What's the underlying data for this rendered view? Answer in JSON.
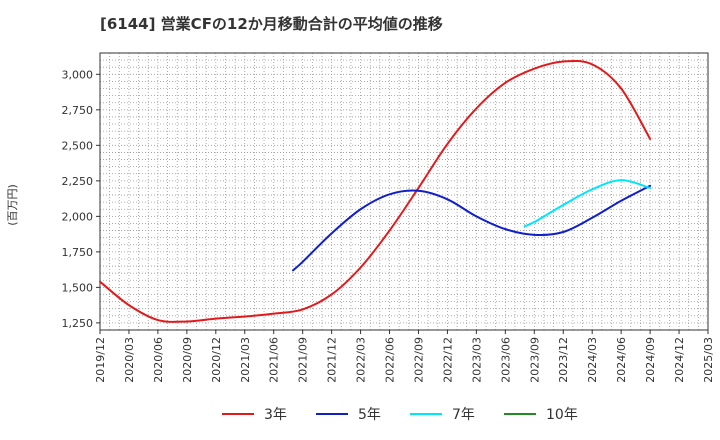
{
  "chart_data": {
    "type": "line",
    "title": "[6144]  営業CFの12か月移動合計の平均値の推移",
    "ylabel": "(百万円)",
    "xlabel": "",
    "ylim": [
      1200,
      3150
    ],
    "yticks": [
      1250,
      1500,
      1750,
      2000,
      2250,
      2500,
      2750,
      3000
    ],
    "ytick_labels": [
      "1,250",
      "1,500",
      "1,750",
      "2,000",
      "2,250",
      "2,500",
      "2,750",
      "3,000"
    ],
    "x_categories": [
      "2019/12",
      "2020/03",
      "2020/06",
      "2020/09",
      "2020/12",
      "2021/03",
      "2021/06",
      "2021/09",
      "2021/12",
      "2022/03",
      "2022/06",
      "2022/09",
      "2022/12",
      "2023/03",
      "2023/06",
      "2023/09",
      "2023/12",
      "2024/03",
      "2024/06",
      "2024/09",
      "2024/12",
      "2025/03"
    ],
    "grid": true,
    "legend_position": "bottom",
    "series": [
      {
        "name": "3年",
        "color": "#e31a1c",
        "points": [
          [
            "2019/12",
            1540
          ],
          [
            "2020/03",
            1375
          ],
          [
            "2020/06",
            1270
          ],
          [
            "2020/09",
            1260
          ],
          [
            "2020/12",
            1280
          ],
          [
            "2021/03",
            1295
          ],
          [
            "2021/06",
            1315
          ],
          [
            "2021/09",
            1345
          ],
          [
            "2021/12",
            1450
          ],
          [
            "2022/03",
            1640
          ],
          [
            "2022/06",
            1900
          ],
          [
            "2022/09",
            2200
          ],
          [
            "2022/12",
            2510
          ],
          [
            "2023/03",
            2760
          ],
          [
            "2023/06",
            2940
          ],
          [
            "2023/09",
            3040
          ],
          [
            "2023/12",
            3090
          ],
          [
            "2024/03",
            3070
          ],
          [
            "2024/06",
            2900
          ],
          [
            "2024/09",
            2545
          ]
        ]
      },
      {
        "name": "5年",
        "color": "#1020c8",
        "points": [
          [
            "2021/08",
            1620
          ],
          [
            "2021/09",
            1680
          ],
          [
            "2021/12",
            1880
          ],
          [
            "2022/03",
            2050
          ],
          [
            "2022/06",
            2155
          ],
          [
            "2022/09",
            2180
          ],
          [
            "2022/12",
            2120
          ],
          [
            "2023/03",
            2000
          ],
          [
            "2023/06",
            1910
          ],
          [
            "2023/09",
            1870
          ],
          [
            "2023/12",
            1890
          ],
          [
            "2024/03",
            1990
          ],
          [
            "2024/06",
            2110
          ],
          [
            "2024/09",
            2215
          ]
        ]
      },
      {
        "name": "7年",
        "color": "#00e5ff",
        "points": [
          [
            "2023/08",
            1930
          ],
          [
            "2023/09",
            1960
          ],
          [
            "2023/12",
            2080
          ],
          [
            "2024/03",
            2190
          ],
          [
            "2024/06",
            2255
          ],
          [
            "2024/09",
            2200
          ]
        ]
      },
      {
        "name": "10年",
        "color": "#228b22",
        "points": []
      }
    ]
  }
}
